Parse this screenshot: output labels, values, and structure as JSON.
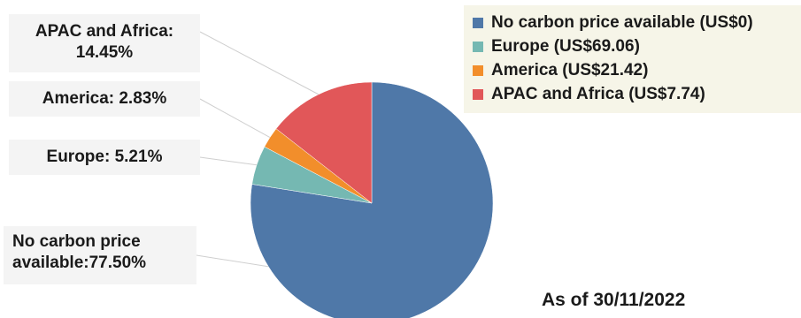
{
  "chart_data": {
    "type": "pie",
    "slices": [
      {
        "name": "No carbon price available",
        "value": 77.5,
        "label": "No carbon price available:77.50%",
        "color": "#4f78a8"
      },
      {
        "name": "Europe",
        "value": 5.21,
        "label": "Europe: 5.21%",
        "color": "#75b8b2"
      },
      {
        "name": "America",
        "value": 2.83,
        "label": "America: 2.83%",
        "color": "#f28e2b"
      },
      {
        "name": "APAC and Africa",
        "value": 14.45,
        "label": "APAC and Africa: 14.45%",
        "color": "#e15759"
      }
    ],
    "legend": {
      "position": "top-right",
      "entries": [
        "No carbon price available (US$0)",
        "Europe (US$69.06)",
        "America (US$21.42)",
        "APAC and Africa (US$7.74)"
      ]
    }
  },
  "labels": {
    "apac_line1": "APAC and Africa:",
    "apac_line2": "14.45%",
    "america": "America: 2.83%",
    "europe": "Europe: 5.21%",
    "no_price_line1": "No carbon price",
    "no_price_line2": "available:77.50%"
  },
  "footer": {
    "as_of": "As of 30/11/2022"
  }
}
